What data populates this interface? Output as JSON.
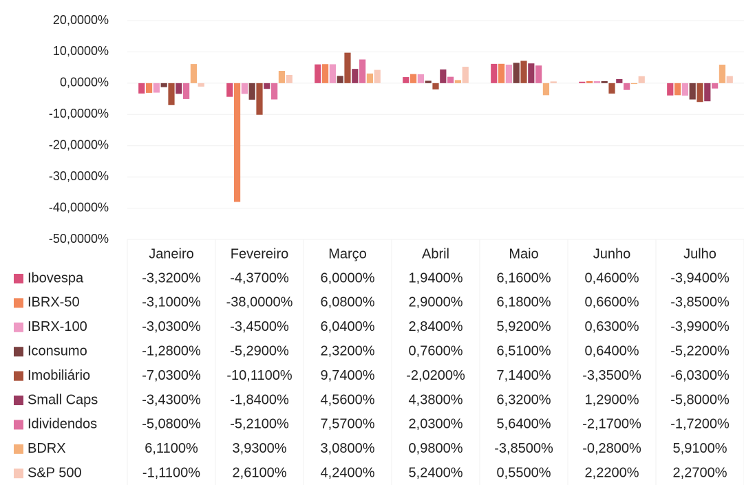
{
  "chart_data": {
    "type": "bar",
    "categories": [
      "Janeiro",
      "Fevereiro",
      "Março",
      "Abril",
      "Maio",
      "Junho",
      "Julho"
    ],
    "series": [
      {
        "name": "Ibovespa",
        "color": "#d9507a",
        "values": [
          -3.32,
          -4.37,
          6.0,
          1.94,
          6.16,
          0.46,
          -3.94
        ],
        "value_labels": [
          "-3,3200%",
          "-4,3700%",
          "6,0000%",
          "1,9400%",
          "6,1600%",
          "0,4600%",
          "-3,9400%"
        ]
      },
      {
        "name": "IBRX-50",
        "color": "#f2875a",
        "values": [
          -3.1,
          -38.0,
          6.08,
          2.9,
          6.18,
          0.66,
          -3.85
        ],
        "value_labels": [
          "-3,1000%",
          "-38,0000%",
          "6,0800%",
          "2,9000%",
          "6,1800%",
          "0,6600%",
          "-3,8500%"
        ]
      },
      {
        "name": "IBRX-100",
        "color": "#ee9ac4",
        "values": [
          -3.03,
          -3.45,
          6.04,
          2.84,
          5.92,
          0.63,
          -3.99
        ],
        "value_labels": [
          "-3,0300%",
          "-3,4500%",
          "6,0400%",
          "2,8400%",
          "5,9200%",
          "0,6300%",
          "-3,9900%"
        ]
      },
      {
        "name": "Iconsumo",
        "color": "#7a4040",
        "values": [
          -1.28,
          -5.29,
          2.32,
          0.76,
          6.51,
          0.64,
          -5.22
        ],
        "value_labels": [
          "-1,2800%",
          "-5,2900%",
          "2,3200%",
          "0,7600%",
          "6,5100%",
          "0,6400%",
          "-5,2200%"
        ]
      },
      {
        "name": "Imobiliário",
        "color": "#a8503a",
        "values": [
          -7.03,
          -10.11,
          9.74,
          -2.02,
          7.14,
          -3.35,
          -6.03
        ],
        "value_labels": [
          "-7,0300%",
          "-10,1100%",
          "9,7400%",
          "-2,0200%",
          "7,1400%",
          "-3,3500%",
          "-6,0300%"
        ]
      },
      {
        "name": "Small Caps",
        "color": "#9a3a60",
        "values": [
          -3.43,
          -1.84,
          4.56,
          4.38,
          6.32,
          1.29,
          -5.8
        ],
        "value_labels": [
          "-3,4300%",
          "-1,8400%",
          "4,5600%",
          "4,3800%",
          "6,3200%",
          "1,2900%",
          "-5,8000%"
        ]
      },
      {
        "name": "Idividendos",
        "color": "#e070a0",
        "values": [
          -5.08,
          -5.21,
          7.57,
          2.03,
          5.64,
          -2.17,
          -1.72
        ],
        "value_labels": [
          "-5,0800%",
          "-5,2100%",
          "7,5700%",
          "2,0300%",
          "5,6400%",
          "-2,1700%",
          "-1,7200%"
        ]
      },
      {
        "name": "BDRX",
        "color": "#f5b07a",
        "values": [
          6.11,
          3.93,
          3.08,
          0.98,
          -3.85,
          -0.28,
          5.91
        ],
        "value_labels": [
          "6,1100%",
          "3,9300%",
          "3,0800%",
          "0,9800%",
          "-3,8500%",
          "-0,2800%",
          "5,9100%"
        ]
      },
      {
        "name": "S&P 500",
        "color": "#f8c8b8",
        "values": [
          -1.11,
          2.61,
          4.24,
          5.24,
          0.55,
          2.22,
          2.27
        ],
        "value_labels": [
          "-1,1100%",
          "2,6100%",
          "4,2400%",
          "5,2400%",
          "0,5500%",
          "2,2200%",
          "2,2700%"
        ]
      }
    ],
    "ylim": [
      -50,
      20
    ],
    "yticks": [
      {
        "value": -50,
        "label": "-50,0000%"
      },
      {
        "value": -40,
        "label": "-40,0000%"
      },
      {
        "value": -30,
        "label": "-30,0000%"
      },
      {
        "value": -20,
        "label": "-20,0000%"
      },
      {
        "value": -10,
        "label": "-10,0000%"
      },
      {
        "value": 0,
        "label": "0,0000%"
      },
      {
        "value": 10,
        "label": "10,0000%"
      },
      {
        "value": 20,
        "label": "20,0000%"
      }
    ],
    "grid": true
  }
}
